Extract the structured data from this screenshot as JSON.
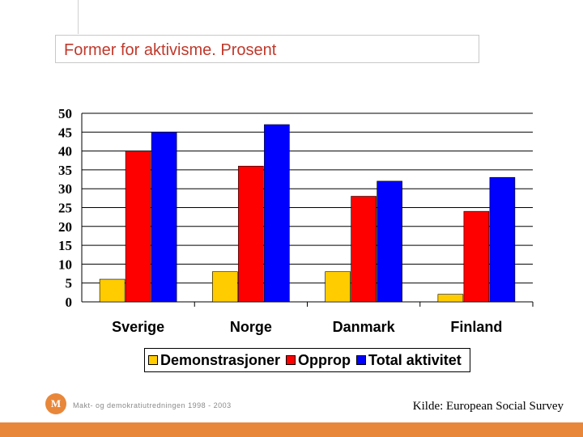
{
  "colors": {
    "accent": "#e8873a",
    "title": "#c0392b"
  },
  "footer": {
    "logo_letter": "M",
    "project_name": "Makt- og demokratiutredningen  1998 - 2003",
    "source": "Kilde: European Social Survey"
  },
  "chart_data": {
    "type": "bar",
    "title": "Former for aktivisme.  Prosent",
    "categories": [
      "Sverige",
      "Norge",
      "Danmark",
      "Finland"
    ],
    "series": [
      {
        "name": "Demonstrasjoner",
        "color": "#ffcc00",
        "values": [
          6,
          8,
          8,
          2
        ]
      },
      {
        "name": "Opprop",
        "color": "#ff0000",
        "values": [
          40,
          36,
          28,
          24
        ]
      },
      {
        "name": "Total aktivitet",
        "color": "#0000ff",
        "values": [
          45,
          47,
          32,
          33
        ]
      }
    ],
    "ylim": [
      0,
      50
    ],
    "yticks": [
      "0",
      "5",
      "10",
      "15",
      "20",
      "25",
      "30",
      "35",
      "40",
      "45",
      "50"
    ],
    "xlabel": "",
    "ylabel": "",
    "grid": true,
    "legend_position": "bottom"
  }
}
